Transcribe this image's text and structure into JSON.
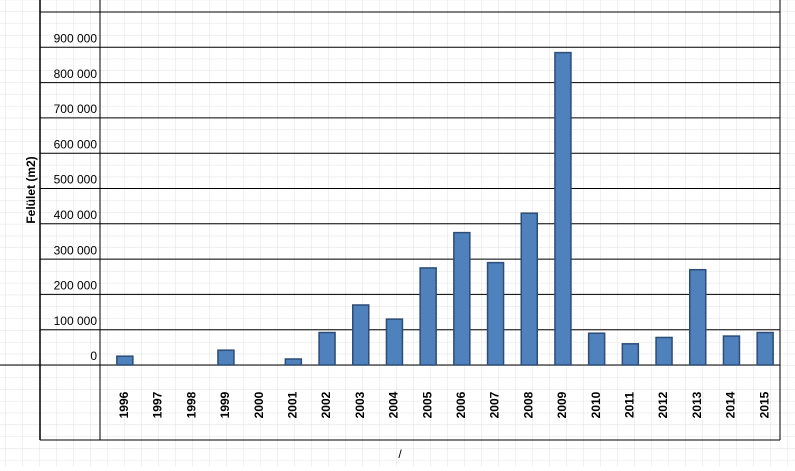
{
  "chart_data": {
    "type": "bar",
    "y_axis_label": "Felület (m2)",
    "annotation": "/",
    "categories": [
      "1996",
      "1997",
      "1998",
      "1999",
      "2000",
      "2001",
      "2002",
      "2003",
      "2004",
      "2005",
      "2006",
      "2007",
      "2008",
      "2009",
      "2010",
      "2011",
      "2012",
      "2013",
      "2014",
      "2015"
    ],
    "values": [
      25000,
      0,
      0,
      42000,
      0,
      17000,
      92000,
      170000,
      130000,
      275000,
      375000,
      290000,
      430000,
      885000,
      90000,
      60000,
      78000,
      270000,
      82000,
      92000
    ],
    "color": "#4f81bd",
    "ylim": [
      0,
      1000000
    ],
    "yticks": [
      {
        "value": 0,
        "label": "0"
      },
      {
        "value": 100000,
        "label": "100 000"
      },
      {
        "value": 200000,
        "label": "200 000"
      },
      {
        "value": 300000,
        "label": "300 000"
      },
      {
        "value": 400000,
        "label": "400 000"
      },
      {
        "value": 500000,
        "label": "500 000"
      },
      {
        "value": 600000,
        "label": "600 000"
      },
      {
        "value": 700000,
        "label": "700 000"
      },
      {
        "value": 800000,
        "label": "800 000"
      },
      {
        "value": 900000,
        "label": "900 000"
      }
    ],
    "grid": true
  }
}
